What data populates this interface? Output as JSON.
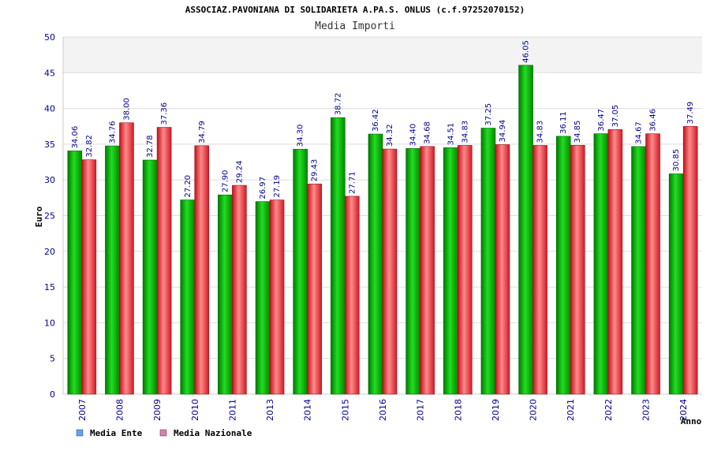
{
  "chart_data": {
    "type": "bar",
    "title": "ASSOCIAZ.PAVONIANA DI SOLIDARIETA A.PA.S. ONLUS (c.f.97252070152)",
    "subtitle": "Media Importi",
    "xlabel": "Anno",
    "ylabel": "Euro",
    "ylim": [
      0,
      50
    ],
    "yticks": [
      0,
      5,
      10,
      15,
      20,
      25,
      30,
      35,
      40,
      45,
      50
    ],
    "grid": true,
    "legend_position": "bottom-left",
    "categories": [
      "2007",
      "2008",
      "2009",
      "2010",
      "2011",
      "2013",
      "2014",
      "2015",
      "2016",
      "2017",
      "2018",
      "2019",
      "2020",
      "2021",
      "2022",
      "2023",
      "2024"
    ],
    "series": [
      {
        "name": "Media Ente",
        "color": "#00bb00",
        "legend_color": "#5da5f5",
        "values": [
          34.06,
          34.76,
          32.78,
          27.2,
          27.9,
          26.97,
          34.3,
          38.72,
          36.42,
          34.4,
          34.51,
          37.25,
          46.05,
          36.11,
          36.47,
          34.67,
          30.85
        ],
        "labels": [
          "34.06",
          "34.76",
          "32.78",
          "27.20",
          "27.90",
          "26.97",
          "34.30",
          "38.72",
          "36.42",
          "34.40",
          "34.51",
          "37.25",
          "46.05",
          "36.11",
          "36.47",
          "34.67",
          "30.85"
        ]
      },
      {
        "name": "Media Nazionale",
        "color": "#e8333a",
        "legend_color": "#e07ab0",
        "values": [
          32.82,
          38.0,
          37.36,
          34.79,
          29.24,
          27.19,
          29.43,
          27.71,
          34.32,
          34.68,
          34.83,
          34.94,
          34.83,
          34.85,
          37.05,
          36.46,
          37.49
        ],
        "labels": [
          "32.82",
          "38.00",
          "37.36",
          "34.79",
          "29.24",
          "27.19",
          "29.43",
          "27.71",
          "34.32",
          "34.68",
          "34.83",
          "34.94",
          "34.83",
          "34.85",
          "37.05",
          "36.46",
          "37.49"
        ]
      }
    ]
  }
}
